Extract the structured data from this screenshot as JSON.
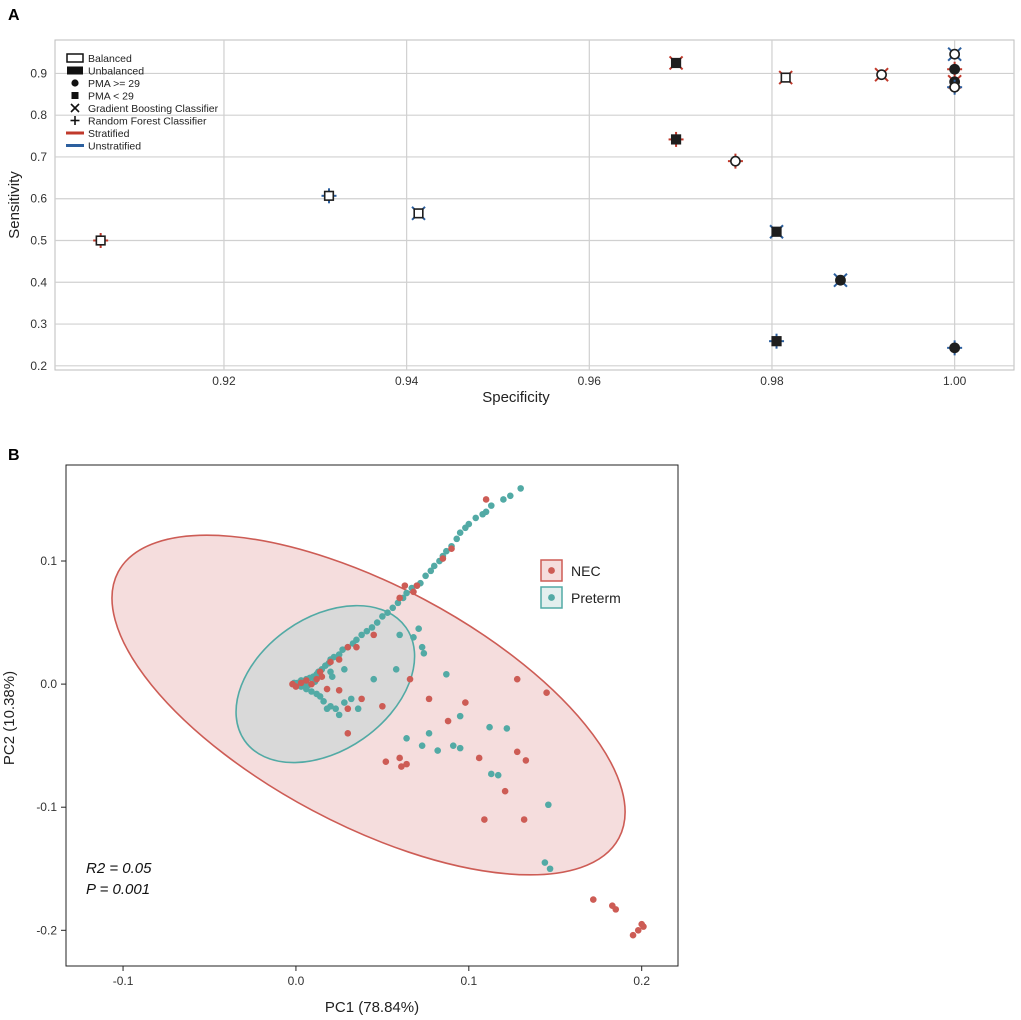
{
  "colors": {
    "stratified": "#c0392b",
    "unstratified": "#2c5f9e",
    "nec": "#cd5c55",
    "preterm": "#52aaa5",
    "grid": "#d0d0d0",
    "nec_fill": "#f5dddd",
    "overlap_fill": "#d9d9d9"
  },
  "chart_data": [
    {
      "panel": "A",
      "type": "scatter",
      "xlabel": "Specificity",
      "ylabel": "Sensitivity",
      "xlim": [
        0.9015,
        1.0065
      ],
      "ylim": [
        0.19,
        0.98
      ],
      "xticks": [
        0.92,
        0.94,
        0.96,
        0.98,
        1.0
      ],
      "xtick_labels": [
        "0.92",
        "0.94",
        "0.96",
        "0.98",
        "1.00"
      ],
      "yticks": [
        0.2,
        0.3,
        0.4,
        0.5,
        0.6,
        0.7,
        0.8,
        0.9
      ],
      "ytick_labels": [
        "0.2",
        "0.3",
        "0.4",
        "0.5",
        "0.6",
        "0.7",
        "0.8",
        "0.9"
      ],
      "legend": [
        {
          "label": "Balanced",
          "symbol": "open-rect"
        },
        {
          "label": "Unbalanced",
          "symbol": "filled-rect"
        },
        {
          "label": "PMA >= 29",
          "symbol": "circle"
        },
        {
          "label": "PMA < 29",
          "symbol": "square"
        },
        {
          "label": "Gradient Boosting Classifier",
          "symbol": "x"
        },
        {
          "label": "Random Forest Classifier",
          "symbol": "plus"
        },
        {
          "label": "Stratified",
          "symbol": "red-line"
        },
        {
          "label": "Unstratified",
          "symbol": "blue-line"
        }
      ],
      "points": [
        {
          "x": 0.9065,
          "y": 0.5,
          "balanced": true,
          "pma": "lt29",
          "model": "rf",
          "strat": true
        },
        {
          "x": 0.9315,
          "y": 0.607,
          "balanced": true,
          "pma": "lt29",
          "model": "rf",
          "strat": false
        },
        {
          "x": 0.9413,
          "y": 0.565,
          "balanced": true,
          "pma": "lt29",
          "model": "gb",
          "strat": false
        },
        {
          "x": 0.9695,
          "y": 0.925,
          "balanced": false,
          "pma": "lt29",
          "model": "gb",
          "strat": true
        },
        {
          "x": 0.9695,
          "y": 0.742,
          "balanced": false,
          "pma": "lt29",
          "model": "rf",
          "strat": true
        },
        {
          "x": 0.976,
          "y": 0.69,
          "balanced": true,
          "pma": "ge29",
          "model": "rf",
          "strat": true
        },
        {
          "x": 0.9805,
          "y": 0.521,
          "balanced": false,
          "pma": "lt29",
          "model": "gb",
          "strat": false
        },
        {
          "x": 0.9805,
          "y": 0.259,
          "balanced": false,
          "pma": "lt29",
          "model": "rf",
          "strat": false
        },
        {
          "x": 0.9815,
          "y": 0.89,
          "balanced": true,
          "pma": "lt29",
          "model": "gb",
          "strat": true
        },
        {
          "x": 0.9875,
          "y": 0.405,
          "balanced": false,
          "pma": "ge29",
          "model": "gb",
          "strat": false
        },
        {
          "x": 0.992,
          "y": 0.897,
          "balanced": true,
          "pma": "ge29",
          "model": "gb",
          "strat": true
        },
        {
          "x": 1.0,
          "y": 0.946,
          "balanced": true,
          "pma": "ge29",
          "model": "gb",
          "strat": false
        },
        {
          "x": 1.0,
          "y": 0.91,
          "balanced": false,
          "pma": "ge29",
          "model": "rf",
          "strat": true
        },
        {
          "x": 1.0,
          "y": 0.88,
          "balanced": false,
          "pma": "ge29",
          "model": "gb",
          "strat": true
        },
        {
          "x": 1.0,
          "y": 0.867,
          "balanced": true,
          "pma": "ge29",
          "model": "rf",
          "strat": false
        },
        {
          "x": 1.0,
          "y": 0.243,
          "balanced": false,
          "pma": "ge29",
          "model": "rf",
          "strat": false
        }
      ]
    },
    {
      "panel": "B",
      "type": "scatter",
      "xlabel": "PC1 (78.84%)",
      "ylabel": "PC2 (10.38%)",
      "xlim": [
        -0.133,
        0.221
      ],
      "ylim": [
        -0.229,
        0.178
      ],
      "xticks": [
        -0.1,
        0.0,
        0.1,
        0.2
      ],
      "xtick_labels": [
        "-0.1",
        "0.0",
        "0.1",
        "0.2"
      ],
      "yticks": [
        -0.2,
        -0.1,
        0.0,
        0.1
      ],
      "ytick_labels": [
        "-0.2",
        "-0.1",
        "0.0",
        "0.1"
      ],
      "legend": [
        "NEC",
        "Preterm"
      ],
      "annotations": [
        "R2 = 0.05",
        "P = 0.001"
      ],
      "ellipses": [
        {
          "group": "NEC",
          "center": [
            0.042,
            -0.017
          ],
          "semi_axes": [
            0.164,
            0.097
          ],
          "angle_deg": -28
        },
        {
          "group": "Preterm",
          "center": [
            0.017,
            0.0
          ],
          "semi_axes": [
            0.057,
            0.054
          ],
          "angle_deg": 35
        }
      ],
      "series": [
        {
          "name": "NEC",
          "points": [
            [
              0.003,
              0.001
            ],
            [
              0.006,
              0.003
            ],
            [
              0.009,
              0.0
            ],
            [
              0.012,
              0.004
            ],
            [
              0.015,
              0.006
            ],
            [
              0.018,
              -0.004
            ],
            [
              0.014,
              0.01
            ],
            [
              0.02,
              0.018
            ],
            [
              0.025,
              0.02
            ],
            [
              0.03,
              0.03
            ],
            [
              0.035,
              0.03
            ],
            [
              0.045,
              0.04
            ],
            [
              0.06,
              0.07
            ],
            [
              0.063,
              0.08
            ],
            [
              0.068,
              0.075
            ],
            [
              0.07,
              0.08
            ],
            [
              0.09,
              0.11
            ],
            [
              0.085,
              0.102
            ],
            [
              0.11,
              0.15
            ],
            [
              0.03,
              -0.02
            ],
            [
              0.038,
              -0.012
            ],
            [
              0.025,
              -0.005
            ],
            [
              0.05,
              -0.018
            ],
            [
              0.03,
              -0.04
            ],
            [
              0.066,
              0.004
            ],
            [
              0.077,
              -0.012
            ],
            [
              0.098,
              -0.015
            ],
            [
              0.128,
              0.004
            ],
            [
              0.145,
              -0.007
            ],
            [
              0.088,
              -0.03
            ],
            [
              0.052,
              -0.063
            ],
            [
              0.06,
              -0.06
            ],
            [
              0.061,
              -0.067
            ],
            [
              0.064,
              -0.065
            ],
            [
              0.106,
              -0.06
            ],
            [
              0.128,
              -0.055
            ],
            [
              0.133,
              -0.062
            ],
            [
              0.121,
              -0.087
            ],
            [
              0.109,
              -0.11
            ],
            [
              0.132,
              -0.11
            ],
            [
              0.172,
              -0.175
            ],
            [
              0.183,
              -0.18
            ],
            [
              0.185,
              -0.183
            ],
            [
              0.2,
              -0.195
            ],
            [
              0.198,
              -0.2
            ],
            [
              0.195,
              -0.204
            ],
            [
              0.201,
              -0.197
            ],
            [
              0.0,
              -0.002
            ],
            [
              -0.002,
              0.0
            ]
          ]
        },
        {
          "name": "Preterm",
          "points": [
            [
              0.0,
              0.0
            ],
            [
              0.002,
              0.0
            ],
            [
              0.004,
              0.002
            ],
            [
              0.005,
              0.0
            ],
            [
              0.006,
              0.004
            ],
            [
              0.008,
              0.005
            ],
            [
              0.01,
              0.006
            ],
            [
              0.012,
              0.008
            ],
            [
              0.013,
              0.01
            ],
            [
              0.015,
              0.012
            ],
            [
              0.017,
              0.015
            ],
            [
              0.019,
              0.017
            ],
            [
              0.02,
              0.02
            ],
            [
              0.022,
              0.022
            ],
            [
              0.025,
              0.024
            ],
            [
              0.027,
              0.028
            ],
            [
              0.03,
              0.03
            ],
            [
              0.033,
              0.033
            ],
            [
              0.035,
              0.036
            ],
            [
              0.038,
              0.04
            ],
            [
              0.041,
              0.043
            ],
            [
              0.044,
              0.046
            ],
            [
              0.047,
              0.05
            ],
            [
              0.05,
              0.055
            ],
            [
              0.053,
              0.058
            ],
            [
              0.056,
              0.062
            ],
            [
              0.059,
              0.066
            ],
            [
              0.062,
              0.07
            ],
            [
              0.064,
              0.074
            ],
            [
              0.067,
              0.078
            ],
            [
              0.07,
              0.08
            ],
            [
              0.072,
              0.082
            ],
            [
              0.075,
              0.088
            ],
            [
              0.078,
              0.092
            ],
            [
              0.08,
              0.096
            ],
            [
              0.083,
              0.1
            ],
            [
              0.085,
              0.104
            ],
            [
              0.087,
              0.108
            ],
            [
              0.09,
              0.112
            ],
            [
              0.093,
              0.118
            ],
            [
              0.095,
              0.123
            ],
            [
              0.098,
              0.127
            ],
            [
              0.1,
              0.13
            ],
            [
              0.104,
              0.135
            ],
            [
              0.108,
              0.138
            ],
            [
              0.11,
              0.14
            ],
            [
              0.113,
              0.145
            ],
            [
              0.12,
              0.15
            ],
            [
              0.124,
              0.153
            ],
            [
              0.13,
              0.159
            ],
            [
              0.003,
              -0.002
            ],
            [
              0.006,
              -0.004
            ],
            [
              0.009,
              -0.006
            ],
            [
              0.012,
              -0.008
            ],
            [
              0.014,
              -0.01
            ],
            [
              0.016,
              -0.014
            ],
            [
              0.02,
              -0.018
            ],
            [
              0.023,
              -0.02
            ],
            [
              0.028,
              -0.015
            ],
            [
              0.032,
              -0.012
            ],
            [
              0.036,
              -0.02
            ],
            [
              0.025,
              -0.025
            ],
            [
              0.018,
              -0.02
            ],
            [
              0.045,
              0.004
            ],
            [
              0.028,
              0.012
            ],
            [
              0.021,
              0.006
            ],
            [
              0.073,
              0.03
            ],
            [
              0.074,
              0.025
            ],
            [
              0.087,
              0.008
            ],
            [
              0.058,
              0.012
            ],
            [
              0.06,
              0.04
            ],
            [
              0.071,
              0.045
            ],
            [
              0.068,
              0.038
            ],
            [
              0.095,
              -0.026
            ],
            [
              0.077,
              -0.04
            ],
            [
              0.064,
              -0.044
            ],
            [
              0.073,
              -0.05
            ],
            [
              0.082,
              -0.054
            ],
            [
              0.091,
              -0.05
            ],
            [
              0.095,
              -0.052
            ],
            [
              0.112,
              -0.035
            ],
            [
              0.122,
              -0.036
            ],
            [
              0.113,
              -0.073
            ],
            [
              0.117,
              -0.074
            ],
            [
              0.146,
              -0.098
            ],
            [
              0.144,
              -0.145
            ],
            [
              0.147,
              -0.15
            ],
            [
              0.001,
              0.001
            ],
            [
              0.003,
              0.003
            ],
            [
              -0.001,
              0.001
            ],
            [
              0.007,
              -0.001
            ],
            [
              0.011,
              0.002
            ],
            [
              0.02,
              0.01
            ]
          ]
        }
      ]
    }
  ]
}
